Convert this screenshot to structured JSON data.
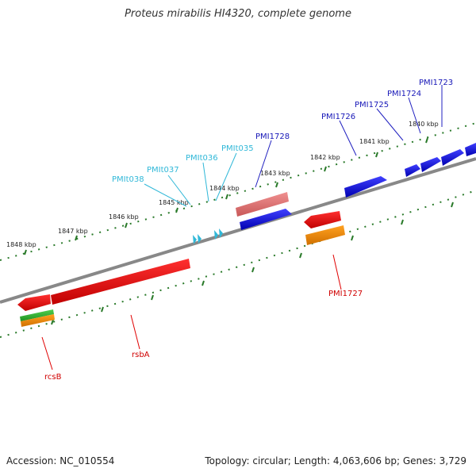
{
  "header": {
    "title": "Proteus mirabilis HI4320, complete genome"
  },
  "footer": {
    "accession": "Accession: NC_010554",
    "summary": "Topology: circular; Length: 4,063,606 bp; Genes: 3,729"
  },
  "ticks": [
    "1848 kbp",
    "1847 kbp",
    "1846 kbp",
    "1845 kbp",
    "1844 kbp",
    "1843 kbp",
    "1842 kbp",
    "1841 kbp",
    "1840 kbp"
  ],
  "labels": {
    "pmi1723": "PMI1723",
    "pmi1724": "PMI1724",
    "pmi1725": "PMI1725",
    "pmi1726": "PMI1726",
    "pmi1728": "PMI1728",
    "pmit035": "PMIt035",
    "pmit036": "PMIt036",
    "pmit037": "PMIt037",
    "pmit038": "PMIt038",
    "pmi1727": "PMI1727",
    "rsba": "rsbA",
    "rcsb": "rcsB"
  },
  "colors": {
    "cds": "#0000e0",
    "trna": "#30b8d8",
    "gene_red": "#e00000",
    "pink": "#e07070",
    "orange": "#f08c00",
    "green": "#30b030",
    "backbone": "#808080",
    "dots": "#2a7a2a"
  }
}
